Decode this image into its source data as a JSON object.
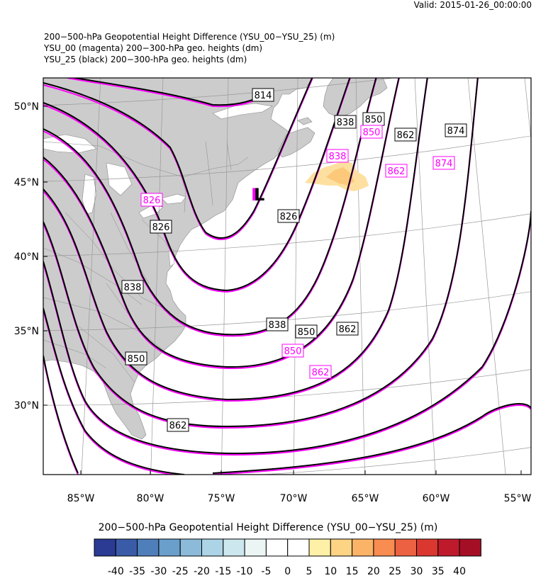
{
  "valid_time": "Valid: 2015-01-26_00:00:00",
  "titles": [
    "200−500-hPa Geopotential Height Difference (YSU_00−YSU_25)   (m)",
    "YSU_00 (magenta) 200−300-hPa geo. heights   (dm)",
    "YSU_25 (black) 200−300-hPa geo. heights   (dm)"
  ],
  "map": {
    "lon_labels": [
      "85°W",
      "80°W",
      "75°W",
      "70°W",
      "65°W",
      "60°W",
      "55°W"
    ],
    "lat_labels": [
      "50°N",
      "45°N",
      "40°N",
      "35°N",
      "30°N"
    ],
    "land_color": "#cccccc",
    "ocean_color": "#ffffff",
    "contour_color_ysu00": "#ff00ff",
    "contour_color_ysu25": "#000000",
    "low_marker": "L",
    "black_labels": [
      "814",
      "838",
      "850",
      "862",
      "874",
      "826",
      "826",
      "838",
      "838",
      "850",
      "862",
      "850",
      "862"
    ],
    "magenta_labels": [
      "850",
      "838",
      "862",
      "874",
      "826",
      "850",
      "862"
    ]
  },
  "colorbar": {
    "title": "200−500-hPa Geopotential Height Difference (YSU_00−YSU_25)  (m)",
    "labels": [
      "-40",
      "-35",
      "-30",
      "-25",
      "-20",
      "-15",
      "-10",
      "-5",
      "0",
      "5",
      "10",
      "15",
      "20",
      "25",
      "30",
      "35",
      "40"
    ],
    "colors": [
      "#2b3a93",
      "#3a5ca8",
      "#4f7fbb",
      "#6a9fcc",
      "#8bbbd9",
      "#acd4e6",
      "#cde7ee",
      "#eaf5f4",
      "#ffffff",
      "#ffffff",
      "#fef0a7",
      "#fdd384",
      "#fbb467",
      "#f88c51",
      "#ec6141",
      "#d93730",
      "#bf1a2c",
      "#a50f26"
    ]
  }
}
